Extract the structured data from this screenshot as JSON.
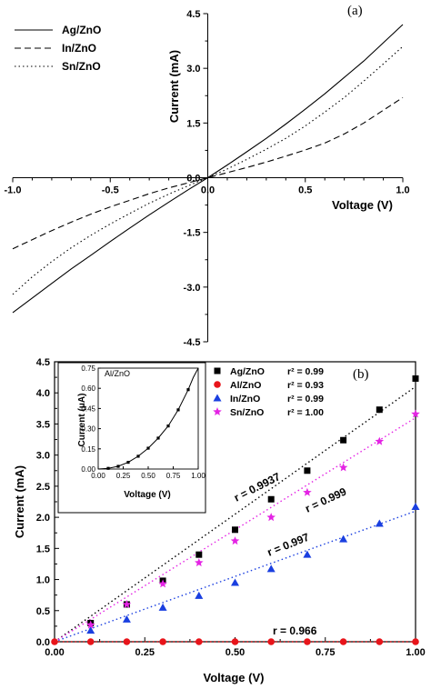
{
  "chart_data": [
    {
      "type": "line",
      "panel_label": "(a)",
      "xlabel": "Voltage (V)",
      "ylabel": "Current (mA)",
      "xlim": [
        -1.0,
        1.0
      ],
      "ylim": [
        -4.5,
        4.5
      ],
      "xticks": [
        "-1.0",
        "-0.5",
        "0.0",
        "0.5",
        "1.0"
      ],
      "yticks": [
        "-4.5",
        "-3.0",
        "-1.5",
        "0.0",
        "1.5",
        "3.0",
        "4.5"
      ],
      "x": [
        -1.0,
        -0.9,
        -0.8,
        -0.7,
        -0.6,
        -0.5,
        -0.4,
        -0.3,
        -0.2,
        -0.1,
        0.0,
        0.1,
        0.2,
        0.3,
        0.4,
        0.5,
        0.6,
        0.7,
        0.8,
        0.9,
        1.0
      ],
      "series": [
        {
          "name": "Ag/ZnO",
          "style": "solid",
          "values": [
            -3.7,
            -3.3,
            -2.9,
            -2.5,
            -2.13,
            -1.75,
            -1.38,
            -1.02,
            -0.67,
            -0.33,
            0.0,
            0.35,
            0.71,
            1.08,
            1.47,
            1.88,
            2.3,
            2.75,
            3.2,
            3.7,
            4.2
          ]
        },
        {
          "name": "In/ZnO",
          "style": "dashed",
          "values": [
            -1.95,
            -1.7,
            -1.45,
            -1.22,
            -1.0,
            -0.8,
            -0.62,
            -0.44,
            -0.28,
            -0.14,
            0.0,
            0.14,
            0.28,
            0.43,
            0.59,
            0.76,
            0.95,
            1.2,
            1.5,
            1.85,
            2.2
          ]
        },
        {
          "name": "Sn/ZnO",
          "style": "dotted",
          "values": [
            -3.2,
            -2.72,
            -2.3,
            -1.92,
            -1.58,
            -1.27,
            -0.98,
            -0.7,
            -0.45,
            -0.22,
            0.0,
            0.24,
            0.5,
            0.78,
            1.08,
            1.42,
            1.8,
            2.2,
            2.65,
            3.12,
            3.6
          ]
        }
      ]
    },
    {
      "type": "scatter",
      "panel_label": "(b)",
      "xlabel": "Voltage (V)",
      "ylabel": "Current (mA)",
      "xlim": [
        0.0,
        1.0
      ],
      "ylim": [
        0.0,
        4.5
      ],
      "xticks": [
        "0.00",
        "0.25",
        "0.50",
        "0.75",
        "1.00"
      ],
      "yticks": [
        "0.0",
        "0.5",
        "1.0",
        "1.5",
        "2.0",
        "2.5",
        "3.0",
        "3.5",
        "4.0",
        "4.5"
      ],
      "x": [
        0.1,
        0.2,
        0.3,
        0.4,
        0.5,
        0.6,
        0.7,
        0.8,
        0.9,
        1.0
      ],
      "series": [
        {
          "name": "Ag/ZnO",
          "r2": "r² = 0.99",
          "marker": "square",
          "color": "#000000",
          "values": [
            0.3,
            0.6,
            0.98,
            1.4,
            1.8,
            2.29,
            2.75,
            3.24,
            3.73,
            4.23
          ],
          "fit": [
            [
              0.0,
              0.0
            ],
            [
              1.0,
              4.1
            ]
          ],
          "fit_label": "r = 0.9937"
        },
        {
          "name": "Al/ZnO",
          "r2": "r² = 0.93",
          "marker": "circle",
          "color": "#e8141a",
          "values": [
            0.0,
            0.0,
            0.0,
            0.0,
            0.0,
            0.0,
            0.0,
            0.0,
            0.0,
            0.0
          ],
          "fit": [
            [
              0.0,
              0.0
            ],
            [
              1.0,
              0.0
            ]
          ],
          "fit_label": "r = 0.966"
        },
        {
          "name": "In/ZnO",
          "r2": "r² = 0.99",
          "marker": "triangle",
          "color": "#1a3fe0",
          "values": [
            0.18,
            0.36,
            0.55,
            0.74,
            0.95,
            1.17,
            1.4,
            1.65,
            1.9,
            2.17
          ],
          "fit": [
            [
              0.0,
              0.0
            ],
            [
              1.0,
              2.1
            ]
          ],
          "fit_label": "r = 0.997"
        },
        {
          "name": "Sn/ZnO",
          "r2": "r² = 1.00",
          "marker": "star",
          "color": "#e424e4",
          "values": [
            0.27,
            0.6,
            0.93,
            1.27,
            1.62,
            2.0,
            2.4,
            2.8,
            3.22,
            3.66
          ],
          "fit": [
            [
              0.0,
              0.0
            ],
            [
              1.0,
              3.6
            ]
          ],
          "fit_label": "r = 0.999"
        }
      ],
      "inset": {
        "title": "Al/ZnO",
        "xlabel": "Voltage (V)",
        "ylabel": "Current (μA)",
        "xlim": [
          0.0,
          1.0
        ],
        "ylim": [
          0.0,
          0.75
        ],
        "xticks": [
          "0.00",
          "0.25",
          "0.50",
          "0.75",
          "1.00"
        ],
        "yticks": [
          "0.00",
          "0.15",
          "0.30",
          "0.45",
          "0.60",
          "0.75"
        ],
        "x": [
          0.1,
          0.2,
          0.3,
          0.4,
          0.5,
          0.6,
          0.7,
          0.8,
          0.9
        ],
        "values": [
          0.005,
          0.02,
          0.05,
          0.095,
          0.155,
          0.23,
          0.32,
          0.44,
          0.59
        ],
        "curve": [
          [
            0.0,
            0.0
          ],
          [
            0.1,
            0.005
          ],
          [
            0.2,
            0.02
          ],
          [
            0.3,
            0.05
          ],
          [
            0.4,
            0.095
          ],
          [
            0.5,
            0.155
          ],
          [
            0.6,
            0.23
          ],
          [
            0.7,
            0.32
          ],
          [
            0.8,
            0.44
          ],
          [
            0.9,
            0.59
          ],
          [
            0.95,
            0.68
          ],
          [
            1.0,
            0.75
          ]
        ]
      }
    }
  ]
}
